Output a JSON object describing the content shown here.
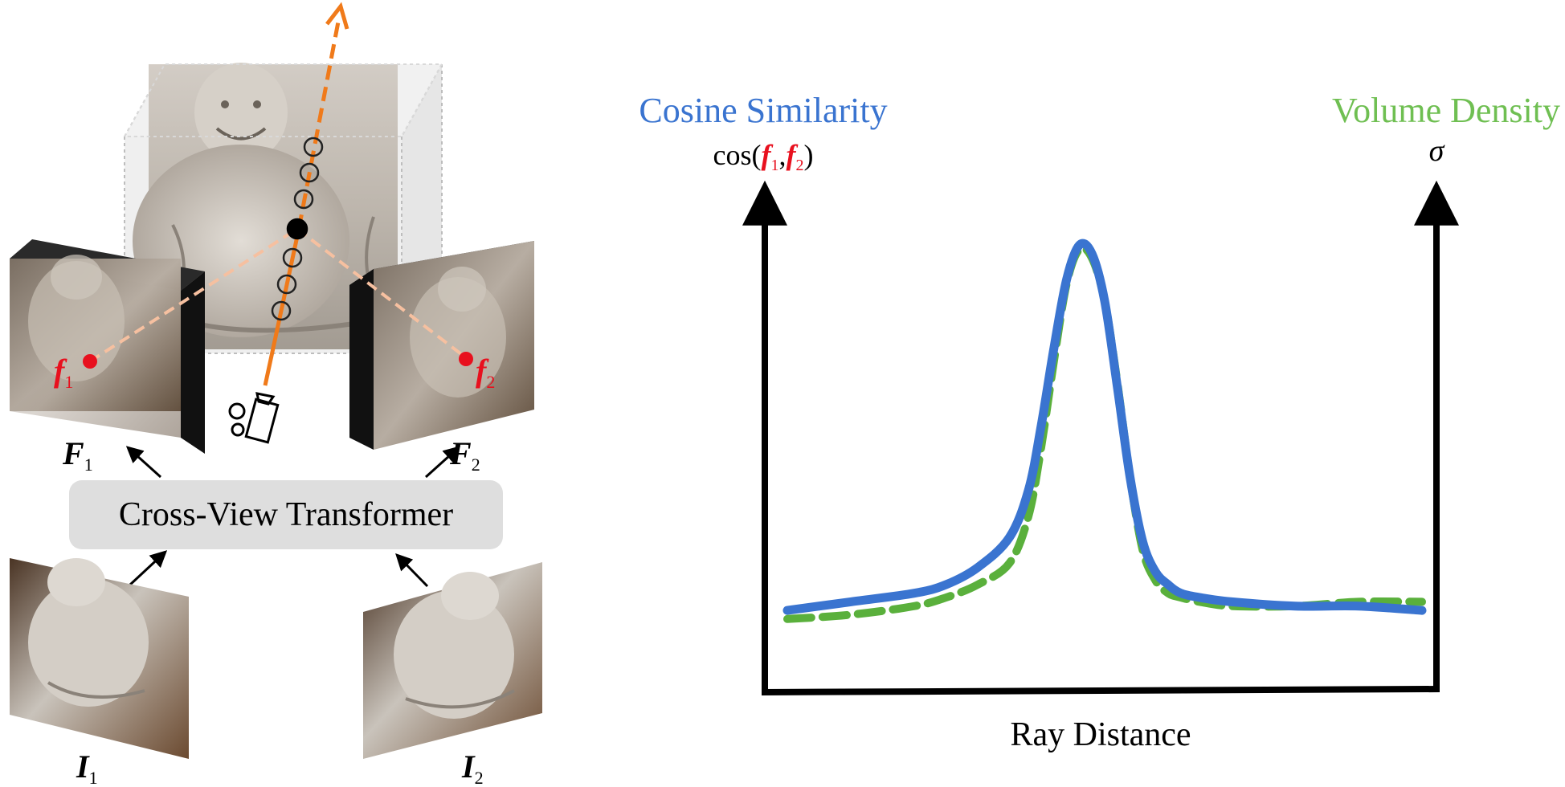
{
  "left_diagram": {
    "transformer_label": "Cross-View Transformer",
    "feature_map_1": {
      "symbol": "F",
      "subscript": "1"
    },
    "feature_map_2": {
      "symbol": "F",
      "subscript": "2"
    },
    "input_image_1": {
      "symbol": "I",
      "subscript": "1"
    },
    "input_image_2": {
      "symbol": "I",
      "subscript": "2"
    },
    "feature_point_1": {
      "symbol": "f",
      "subscript": "1"
    },
    "feature_point_2": {
      "symbol": "f",
      "subscript": "2"
    },
    "icons": [
      "camera-icon",
      "buddha-statue-image"
    ],
    "colors": {
      "ray": "#f07a1a",
      "ray_dashed": "#f6c0a0",
      "feature_point": "#e8101e",
      "transformer_box": "#dedede"
    }
  },
  "right_chart": {
    "left_axis_title": "Cosine Similarity",
    "left_axis_formula": {
      "prefix": "cos(",
      "f1": "f",
      "f1_sub": "1",
      "sep": ",",
      "f2": "f",
      "f2_sub": "2",
      "suffix": ")"
    },
    "right_axis_title": "Volume Density",
    "right_axis_symbol": "σ",
    "x_axis_label": "Ray Distance",
    "colors": {
      "cosine": "#3a74d0",
      "density": "#5ab03c",
      "axis": "#000000",
      "formula_f": "#e8101e"
    }
  },
  "chart_data": {
    "type": "line",
    "title": "",
    "xlabel": "Ray Distance",
    "ylabel": "Cosine Similarity",
    "y2label": "Volume Density",
    "xlim": [
      0,
      100
    ],
    "ylim": [
      0,
      1
    ],
    "grid": false,
    "series": [
      {
        "name": "Cosine Similarity",
        "style": "solid",
        "color": "#3a74d0",
        "x": [
          0,
          10,
          20,
          25,
          30,
          35,
          38,
          40,
          42,
          44,
          46,
          48,
          50,
          52,
          54,
          56,
          58,
          60,
          62,
          65,
          70,
          80,
          90,
          100
        ],
        "y": [
          0.14,
          0.16,
          0.18,
          0.2,
          0.24,
          0.31,
          0.42,
          0.57,
          0.75,
          0.91,
          0.99,
          0.97,
          0.86,
          0.66,
          0.45,
          0.3,
          0.23,
          0.2,
          0.18,
          0.17,
          0.16,
          0.15,
          0.15,
          0.14
        ]
      },
      {
        "name": "Volume Density",
        "style": "dashed",
        "color": "#5ab03c",
        "x": [
          0,
          10,
          20,
          25,
          30,
          35,
          38,
          40,
          42,
          44,
          46,
          48,
          50,
          52,
          54,
          56,
          58,
          60,
          62,
          65,
          70,
          80,
          90,
          100
        ],
        "y": [
          0.12,
          0.13,
          0.15,
          0.17,
          0.2,
          0.25,
          0.36,
          0.52,
          0.72,
          0.9,
          0.98,
          0.96,
          0.86,
          0.67,
          0.45,
          0.28,
          0.21,
          0.18,
          0.17,
          0.16,
          0.15,
          0.15,
          0.16,
          0.16
        ]
      }
    ]
  }
}
